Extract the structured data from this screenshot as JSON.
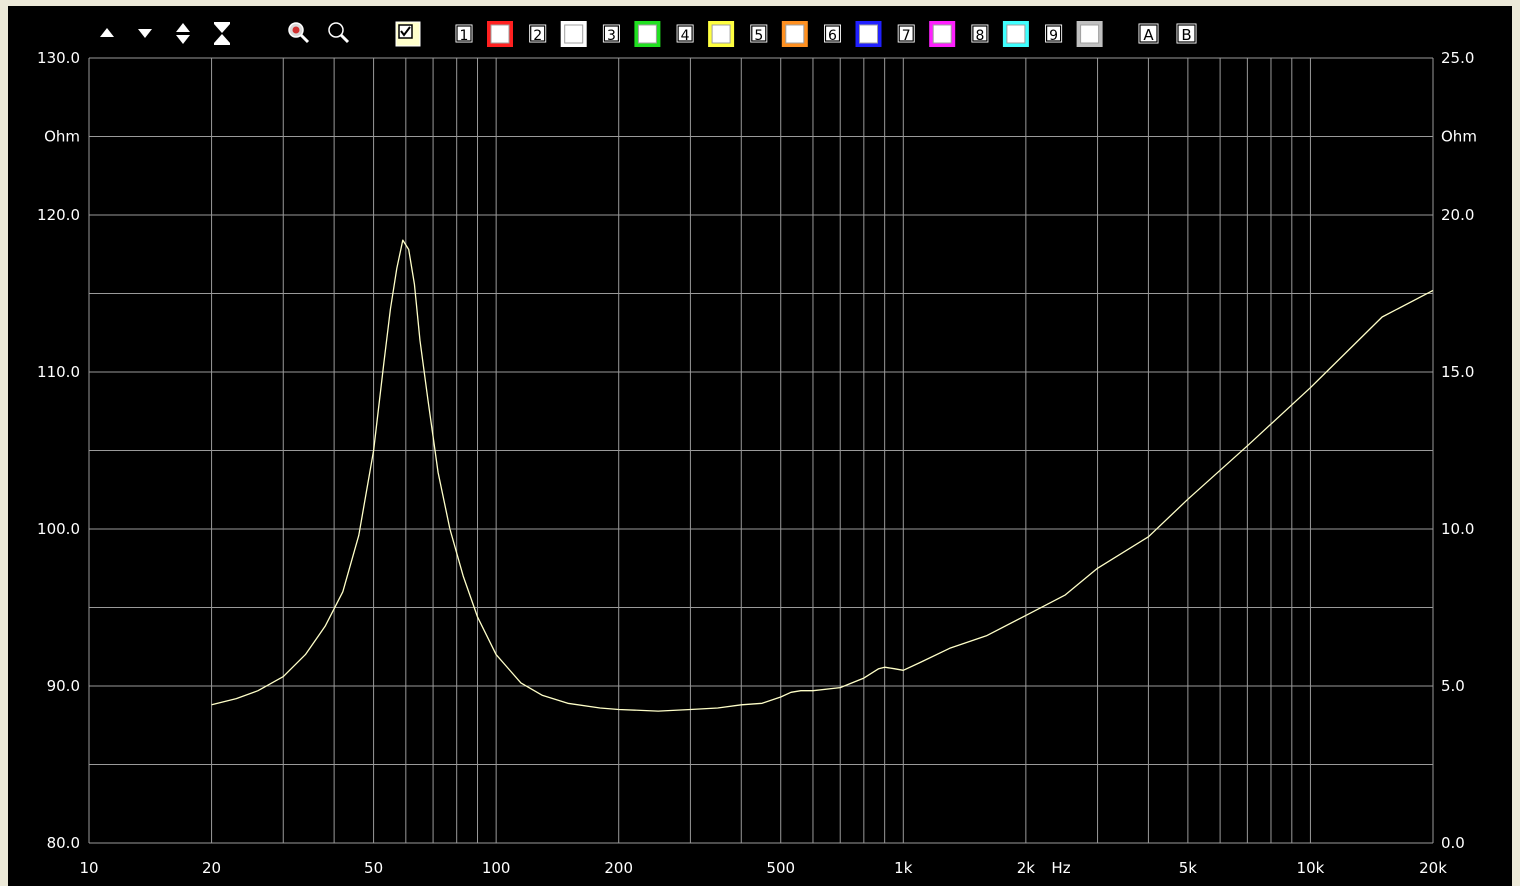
{
  "toolbar": {
    "buttons": [
      {
        "name": "move-up",
        "icon": "triangle-up-icon"
      },
      {
        "name": "move-down",
        "icon": "triangle-down-icon"
      },
      {
        "name": "expand",
        "icon": "expand-vertical-icon"
      },
      {
        "name": "compress",
        "icon": "compress-vertical-icon"
      },
      {
        "name": "zoom-in",
        "icon": "zoom-in-icon"
      },
      {
        "name": "zoom-out",
        "icon": "zoom-out-icon"
      }
    ],
    "main_checkbox": {
      "checked": true,
      "color": "#ffffcc"
    },
    "channels": [
      {
        "label": "1",
        "color": "#ff2020"
      },
      {
        "label": "2",
        "color": "#ffffff"
      },
      {
        "label": "3",
        "color": "#20e020"
      },
      {
        "label": "4",
        "color": "#ffff40"
      },
      {
        "label": "5",
        "color": "#ff9020"
      },
      {
        "label": "6",
        "color": "#2020ff"
      },
      {
        "label": "7",
        "color": "#ff20ff"
      },
      {
        "label": "8",
        "color": "#40ffff"
      },
      {
        "label": "9",
        "color": "#c0c0c0"
      }
    ],
    "markers": [
      "A",
      "B"
    ]
  },
  "chart_data": {
    "type": "line",
    "x_scale": "log",
    "xlim": [
      10,
      20000
    ],
    "x_ticks": [
      {
        "value": 10,
        "label": "10"
      },
      {
        "value": 20,
        "label": "20"
      },
      {
        "value": 50,
        "label": "50"
      },
      {
        "value": 100,
        "label": "100"
      },
      {
        "value": 200,
        "label": "200"
      },
      {
        "value": 500,
        "label": "500"
      },
      {
        "value": 1000,
        "label": "1k"
      },
      {
        "value": 2000,
        "label": "2k"
      },
      {
        "value": 5000,
        "label": "5k"
      },
      {
        "value": 10000,
        "label": "10k"
      },
      {
        "value": 20000,
        "label": "20k"
      }
    ],
    "x_unit_label": "Hz",
    "y_left": {
      "lim": [
        80,
        130
      ],
      "ticks": [
        {
          "value": 130,
          "label": "130.0"
        },
        {
          "value": 125,
          "label": "Ohm"
        },
        {
          "value": 120,
          "label": "120.0"
        },
        {
          "value": 110,
          "label": "110.0"
        },
        {
          "value": 100,
          "label": "100.0"
        },
        {
          "value": 90,
          "label": "90.0"
        },
        {
          "value": 80,
          "label": "80.0"
        }
      ]
    },
    "y_right": {
      "lim": [
        0,
        25
      ],
      "ticks": [
        {
          "value": 25,
          "label": "25.0"
        },
        {
          "value": 22.5,
          "label": "Ohm"
        },
        {
          "value": 20,
          "label": "20.0"
        },
        {
          "value": 15,
          "label": "15.0"
        },
        {
          "value": 10,
          "label": "10.0"
        },
        {
          "value": 5,
          "label": "5.0"
        },
        {
          "value": 0,
          "label": "0.0"
        }
      ]
    },
    "grid": true,
    "background": "#000000",
    "grid_color": "#9a9a9a",
    "line_color": "#ffffc8",
    "series": [
      {
        "axis": "right",
        "x": [
          20,
          23,
          26,
          30,
          34,
          38,
          42,
          46,
          50,
          53,
          55,
          57,
          59,
          61,
          63,
          65,
          68,
          72,
          77,
          83,
          90,
          100,
          115,
          130,
          150,
          180,
          200,
          250,
          300,
          350,
          400,
          450,
          500,
          530,
          560,
          600,
          700,
          800,
          870,
          900,
          950,
          1000,
          1100,
          1300,
          1600,
          2000,
          2500,
          3000,
          4000,
          5000,
          7000,
          10000,
          15000,
          20000
        ],
        "y": [
          4.4,
          4.6,
          4.85,
          5.3,
          6.0,
          6.9,
          8.0,
          9.8,
          12.5,
          15.3,
          17.0,
          18.3,
          19.2,
          18.9,
          17.8,
          16.0,
          14.1,
          11.8,
          10.0,
          8.5,
          7.2,
          6.0,
          5.1,
          4.7,
          4.45,
          4.3,
          4.25,
          4.2,
          4.25,
          4.3,
          4.4,
          4.45,
          4.65,
          4.8,
          4.85,
          4.85,
          4.95,
          5.25,
          5.55,
          5.6,
          5.55,
          5.5,
          5.75,
          6.2,
          6.6,
          7.25,
          7.9,
          8.75,
          9.75,
          10.95,
          12.65,
          14.5,
          16.75,
          17.6
        ]
      }
    ]
  }
}
